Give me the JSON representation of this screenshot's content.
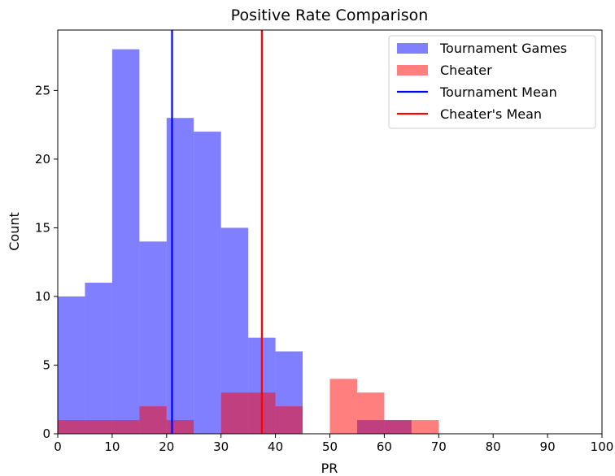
{
  "chart_data": {
    "type": "bar",
    "title": "Positive Rate Comparison",
    "xlabel": "PR",
    "ylabel": "Count",
    "xlim": [
      0,
      100
    ],
    "ylim": [
      0,
      29.4
    ],
    "xticks": [
      0,
      10,
      20,
      30,
      40,
      50,
      60,
      70,
      80,
      90,
      100
    ],
    "yticks": [
      0,
      5,
      10,
      15,
      20,
      25
    ],
    "grid": false,
    "legend_position": "top-right",
    "series": [
      {
        "name": "Tournament Games",
        "kind": "histogram",
        "color": "#0000ff",
        "opacity": 0.5,
        "bins": [
          {
            "x0": 0,
            "x1": 5,
            "count": 10
          },
          {
            "x0": 5,
            "x1": 10,
            "count": 11
          },
          {
            "x0": 10,
            "x1": 15,
            "count": 28
          },
          {
            "x0": 15,
            "x1": 20,
            "count": 14
          },
          {
            "x0": 20,
            "x1": 25,
            "count": 23
          },
          {
            "x0": 25,
            "x1": 30,
            "count": 22
          },
          {
            "x0": 30,
            "x1": 35,
            "count": 15
          },
          {
            "x0": 35,
            "x1": 40,
            "count": 7
          },
          {
            "x0": 40,
            "x1": 45,
            "count": 6
          },
          {
            "x0": 55,
            "x1": 60,
            "count": 1
          },
          {
            "x0": 60,
            "x1": 65,
            "count": 1
          }
        ]
      },
      {
        "name": "Cheater",
        "kind": "histogram",
        "color": "#ff0000",
        "opacity": 0.5,
        "bins": [
          {
            "x0": 0,
            "x1": 5,
            "count": 1
          },
          {
            "x0": 5,
            "x1": 10,
            "count": 1
          },
          {
            "x0": 10,
            "x1": 15,
            "count": 1
          },
          {
            "x0": 15,
            "x1": 20,
            "count": 2
          },
          {
            "x0": 20,
            "x1": 25,
            "count": 1
          },
          {
            "x0": 30,
            "x1": 35,
            "count": 3
          },
          {
            "x0": 35,
            "x1": 40,
            "count": 3
          },
          {
            "x0": 40,
            "x1": 45,
            "count": 2
          },
          {
            "x0": 50,
            "x1": 55,
            "count": 4
          },
          {
            "x0": 55,
            "x1": 60,
            "count": 3
          },
          {
            "x0": 60,
            "x1": 65,
            "count": 1
          },
          {
            "x0": 65,
            "x1": 70,
            "count": 1
          }
        ]
      },
      {
        "name": "Tournament Mean",
        "kind": "vline",
        "color": "#0000ff",
        "x": 21
      },
      {
        "name": "Cheater's Mean",
        "kind": "vline",
        "color": "#ff0000",
        "x": 37.5
      }
    ]
  }
}
